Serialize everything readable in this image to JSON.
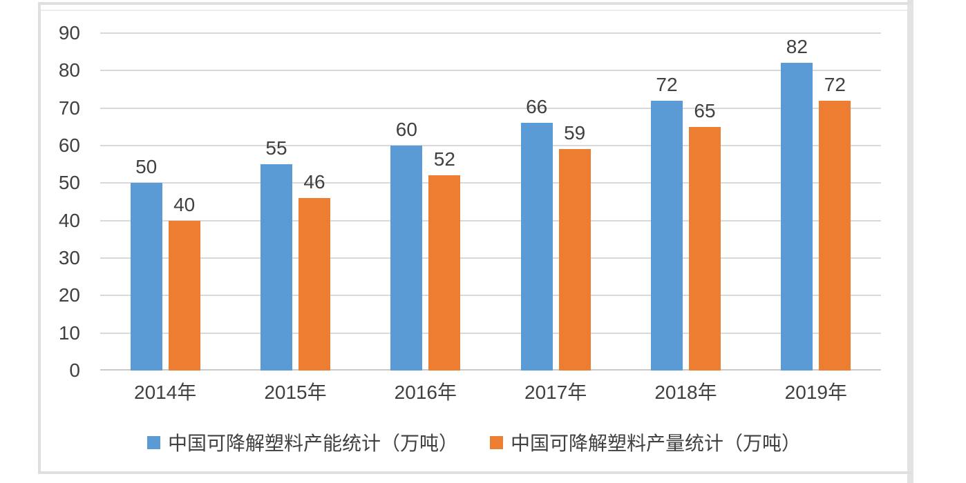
{
  "chart_data": {
    "type": "bar",
    "title": "",
    "categories": [
      "2014年",
      "2015年",
      "2016年",
      "2017年",
      "2018年",
      "2019年"
    ],
    "series": [
      {
        "name": "中国可降解塑料产能统计（万吨）",
        "color": "#5B9BD5",
        "values": [
          50,
          55,
          60,
          66,
          72,
          82
        ]
      },
      {
        "name": "中国可降解塑料产量统计（万吨）",
        "color": "#ED7D31",
        "values": [
          40,
          46,
          52,
          59,
          65,
          72
        ]
      }
    ],
    "xlabel": "",
    "ylabel": "",
    "ylim": [
      0,
      90
    ],
    "yticks": [
      90,
      80,
      70,
      60,
      50,
      40,
      30,
      20,
      10,
      0
    ],
    "grid": "horizontal",
    "legend_position": "bottom",
    "data_labels": true
  },
  "colors": {
    "gridline": "#D9D9D9",
    "axis_line": "#C9C9C9",
    "text": "#404040",
    "frame_border": "#DFDFDF",
    "scroll_band": "#E3E3E3",
    "background": "#FFFFFF"
  }
}
